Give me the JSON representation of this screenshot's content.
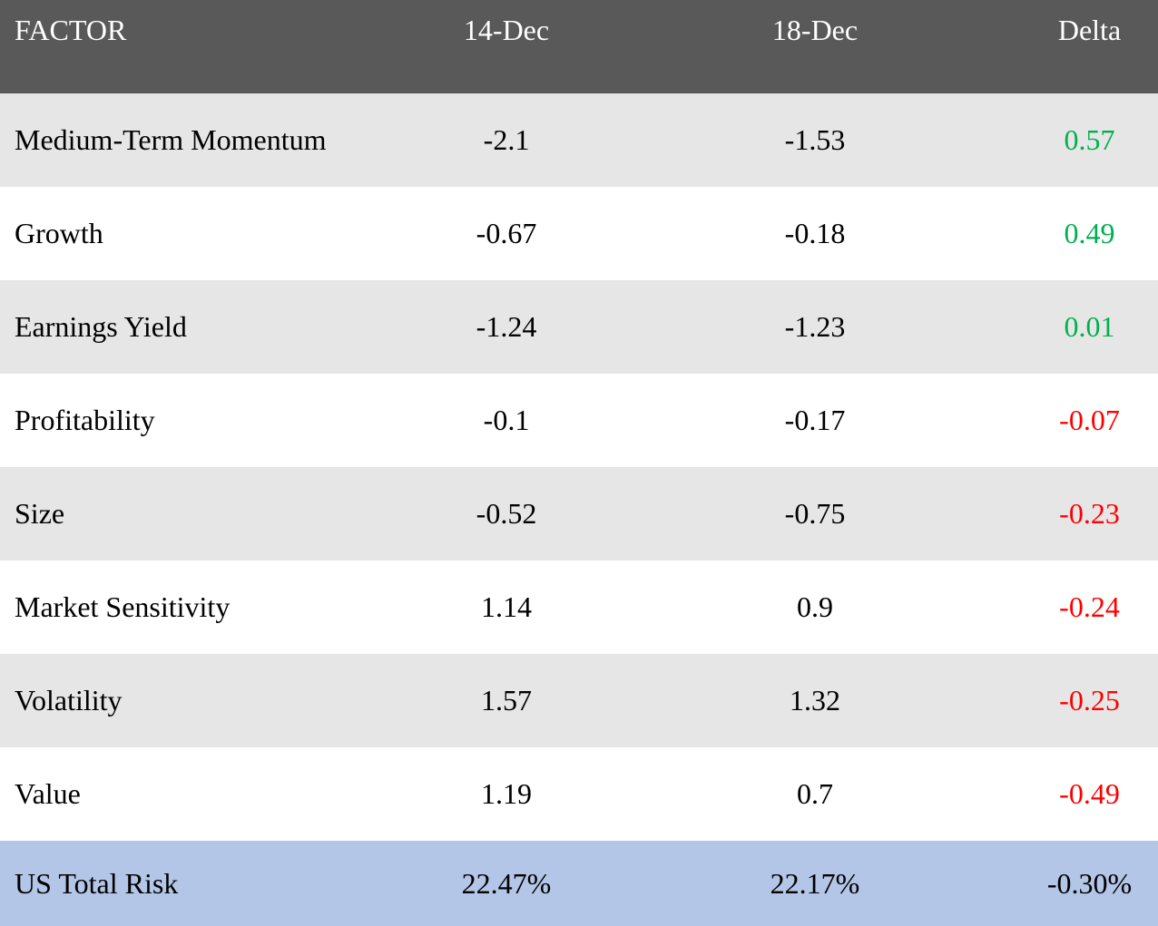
{
  "colors": {
    "header_bg": "#595959",
    "header_text": "#ffffff",
    "row_alt_bg": "#e7e6e6",
    "row_bg": "#ffffff",
    "total_row_bg": "#b4c6e7",
    "body_text": "#000000",
    "delta_positive": "#00b050",
    "delta_negative": "#ff0000"
  },
  "table": {
    "columns": [
      {
        "key": "factor",
        "label": "FACTOR"
      },
      {
        "key": "dec14",
        "label": "14-Dec"
      },
      {
        "key": "dec18",
        "label": "18-Dec"
      },
      {
        "key": "delta",
        "label": "Delta"
      }
    ],
    "rows": [
      {
        "factor": "Medium-Term Momentum",
        "dec14": "-2.1",
        "dec18": "-1.53",
        "delta": "0.57",
        "delta_trend": "positive"
      },
      {
        "factor": "Growth",
        "dec14": "-0.67",
        "dec18": "-0.18",
        "delta": "0.49",
        "delta_trend": "positive"
      },
      {
        "factor": "Earnings Yield",
        "dec14": "-1.24",
        "dec18": "-1.23",
        "delta": "0.01",
        "delta_trend": "positive"
      },
      {
        "factor": "Profitability",
        "dec14": "-0.1",
        "dec18": "-0.17",
        "delta": "-0.07",
        "delta_trend": "negative"
      },
      {
        "factor": "Size",
        "dec14": "-0.52",
        "dec18": "-0.75",
        "delta": "-0.23",
        "delta_trend": "negative"
      },
      {
        "factor": "Market Sensitivity",
        "dec14": "1.14",
        "dec18": "0.9",
        "delta": "-0.24",
        "delta_trend": "negative"
      },
      {
        "factor": "Volatility",
        "dec14": "1.57",
        "dec18": "1.32",
        "delta": "-0.25",
        "delta_trend": "negative"
      },
      {
        "factor": "Value",
        "dec14": "1.19",
        "dec18": "0.7",
        "delta": "-0.49",
        "delta_trend": "negative"
      }
    ],
    "total_row": {
      "factor": "US Total Risk",
      "dec14": "22.47%",
      "dec18": "22.17%",
      "delta": "-0.30%",
      "delta_trend": "neutral"
    }
  },
  "chart_data": {
    "type": "table",
    "title": "Factor exposures 14-Dec vs 18-Dec with Delta",
    "columns": [
      "FACTOR",
      "14-Dec",
      "18-Dec",
      "Delta"
    ],
    "rows": [
      [
        "Medium-Term Momentum",
        -2.1,
        -1.53,
        0.57
      ],
      [
        "Growth",
        -0.67,
        -0.18,
        0.49
      ],
      [
        "Earnings Yield",
        -1.24,
        -1.23,
        0.01
      ],
      [
        "Profitability",
        -0.1,
        -0.17,
        -0.07
      ],
      [
        "Size",
        -0.52,
        -0.75,
        -0.23
      ],
      [
        "Market Sensitivity",
        1.14,
        0.9,
        -0.24
      ],
      [
        "Volatility",
        1.57,
        1.32,
        -0.25
      ],
      [
        "Value",
        1.19,
        0.7,
        -0.49
      ]
    ],
    "total_row": [
      "US Total Risk",
      "22.47%",
      "22.17%",
      "-0.30%"
    ],
    "layout_hints": {
      "delta_positive_color": "#00b050",
      "delta_negative_color": "#ff0000",
      "total_row_delta_color": "#000000",
      "striped_rows": true,
      "header_background": "#595959",
      "total_row_background": "#b4c6e7"
    }
  }
}
